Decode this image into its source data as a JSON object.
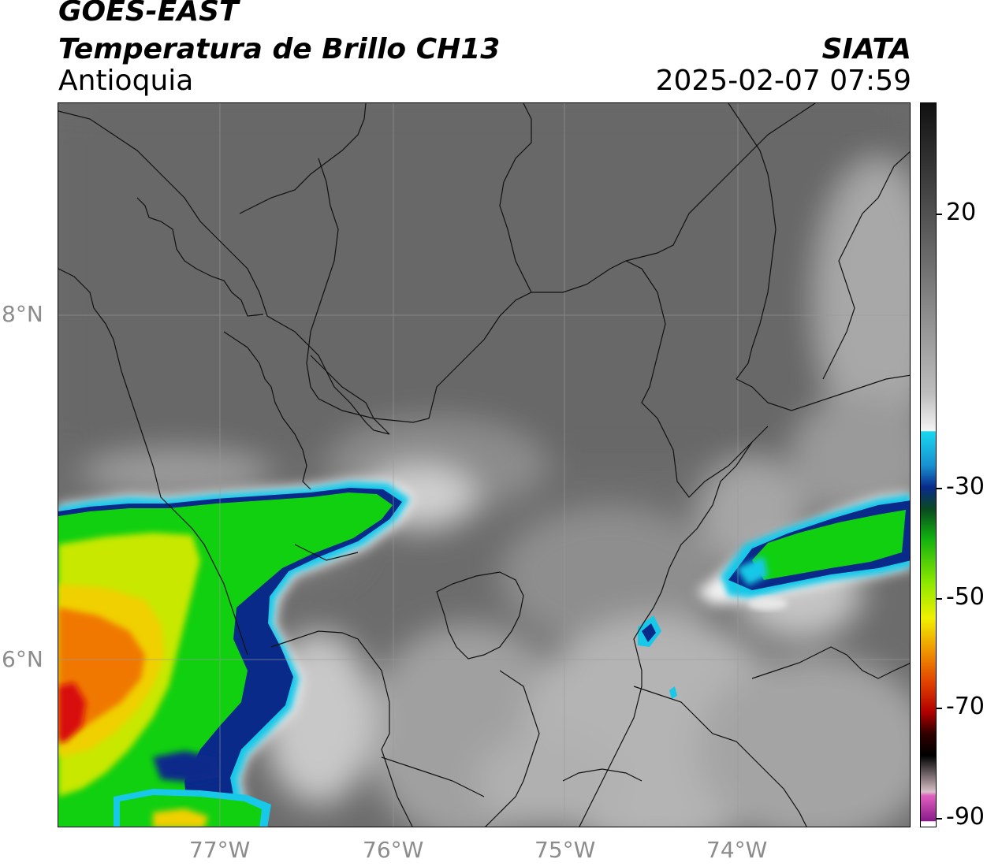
{
  "header": {
    "satellite": "GOES-EAST",
    "product": "Temperatura de Brillo CH13",
    "region": "Antioquia",
    "organization": "SIATA",
    "datetime": "2025-02-07 07:59"
  },
  "map": {
    "lon_range": [
      -77.95,
      -73.05
    ],
    "lat_range": [
      5.0,
      9.2
    ],
    "x_ticks": [
      {
        "lon": -77,
        "label": "77°W"
      },
      {
        "lon": -76,
        "label": "76°W"
      },
      {
        "lon": -75,
        "label": "75°W"
      },
      {
        "lon": -74,
        "label": "74°W"
      }
    ],
    "y_ticks": [
      {
        "lat": 8,
        "label": "8°N"
      },
      {
        "lat": 6,
        "label": "6°N"
      }
    ],
    "grid": true
  },
  "colorbar": {
    "range": [
      -90,
      40
    ],
    "ticks": [
      {
        "value": 20,
        "label": "20"
      },
      {
        "value": -30,
        "label": "-30"
      },
      {
        "value": -50,
        "label": "-50"
      },
      {
        "value": -70,
        "label": "-70"
      },
      {
        "value": -90,
        "label": "-90"
      }
    ]
  },
  "colors": {
    "cold_cloud_blue": "#0a2a8a",
    "cyan": "#18c8e8",
    "green": "#10d010",
    "yellow": "#f0f000",
    "orange": "#f07800",
    "red": "#d81010"
  }
}
